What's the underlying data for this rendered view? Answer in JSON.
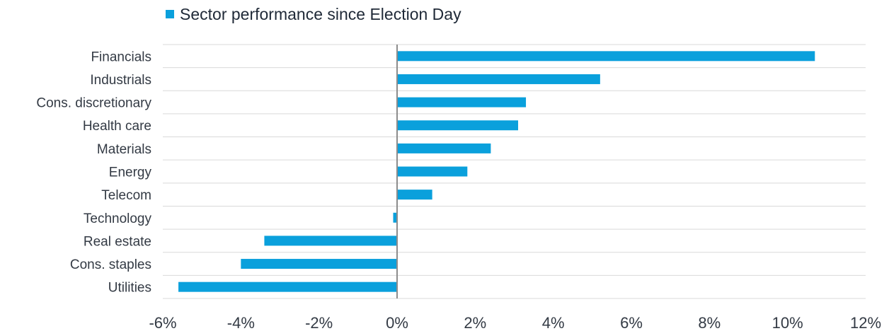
{
  "chart_data": {
    "type": "bar",
    "orientation": "horizontal",
    "categories": [
      "Financials",
      "Industrials",
      "Cons. discretionary",
      "Health care",
      "Materials",
      "Energy",
      "Telecom",
      "Technology",
      "Real estate",
      "Cons. staples",
      "Utilities"
    ],
    "series": [
      {
        "name": "Sector performance since Election Day",
        "values": [
          10.7,
          5.2,
          3.3,
          3.1,
          2.4,
          1.8,
          0.9,
          -0.1,
          -3.4,
          -4.0,
          -5.6
        ]
      }
    ],
    "xlim": [
      -6,
      12
    ],
    "xticks": [
      -6,
      -4,
      -2,
      0,
      2,
      4,
      6,
      8,
      10,
      12
    ],
    "xtick_labels": [
      "-6%",
      "-4%",
      "-2%",
      "0%",
      "2%",
      "4%",
      "6%",
      "8%",
      "10%",
      "12%"
    ],
    "grid": true,
    "legend_position": "top-left",
    "bar_color": "#0aa0dc",
    "grid_color": "#d9d9d9",
    "zero_line_color": "#8c8c8c"
  }
}
